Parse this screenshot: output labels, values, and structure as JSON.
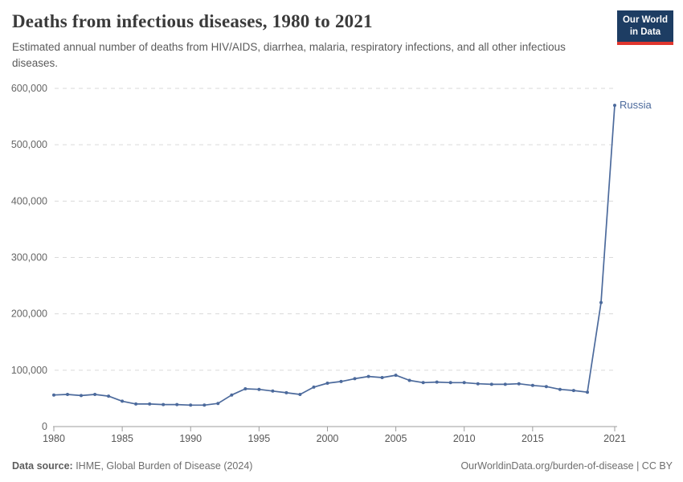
{
  "header": {
    "title": "Deaths from infectious diseases, 1980 to 2021",
    "subtitle": "Estimated annual number of deaths from HIV/AIDS, diarrhea, malaria, respiratory infections, and all other infectious diseases."
  },
  "logo": {
    "line1": "Our World",
    "line2": "in Data",
    "background": "#1d3d63",
    "accent": "#e0362e"
  },
  "chart_data": {
    "type": "line",
    "title": "Deaths from infectious diseases, 1980 to 2021",
    "xlabel": "",
    "ylabel": "",
    "xlim": [
      1980,
      2021
    ],
    "ylim": [
      0,
      600000
    ],
    "ytick_step": 100000,
    "yticks_labels": [
      "0",
      "100,000",
      "200,000",
      "300,000",
      "400,000",
      "500,000",
      "600,000"
    ],
    "xticks": [
      1980,
      1985,
      1990,
      1995,
      2000,
      2005,
      2010,
      2015,
      2021
    ],
    "grid": "horizontal-dashed",
    "legend_position": "end-of-line-label",
    "series": [
      {
        "name": "Russia",
        "color": "#4c6a9c",
        "x": [
          1980,
          1981,
          1982,
          1983,
          1984,
          1985,
          1986,
          1987,
          1988,
          1989,
          1990,
          1991,
          1992,
          1993,
          1994,
          1995,
          1996,
          1997,
          1998,
          1999,
          2000,
          2001,
          2002,
          2003,
          2004,
          2005,
          2006,
          2007,
          2008,
          2009,
          2010,
          2011,
          2012,
          2013,
          2014,
          2015,
          2016,
          2017,
          2018,
          2019,
          2020,
          2021
        ],
        "values": [
          56000,
          57000,
          55000,
          57000,
          54000,
          45000,
          40000,
          40000,
          39000,
          39000,
          38000,
          38000,
          41000,
          56000,
          67000,
          66000,
          63000,
          60000,
          57000,
          70000,
          77000,
          80000,
          85000,
          89000,
          87000,
          91000,
          82000,
          78000,
          79000,
          78000,
          78000,
          76000,
          75000,
          75000,
          76000,
          73000,
          71000,
          66000,
          64000,
          61000,
          220000,
          570000
        ]
      }
    ],
    "colors": {
      "line": "#4c6a9c",
      "gridline": "#dadada",
      "axis": "#9e9e9e",
      "ytick_label": "#666666",
      "xtick_label": "#575757"
    }
  },
  "footer": {
    "source_label": "Data source:",
    "source_text": " IHME, Global Burden of Disease (2024)",
    "credit": "OurWorldinData.org/burden-of-disease | CC BY"
  }
}
